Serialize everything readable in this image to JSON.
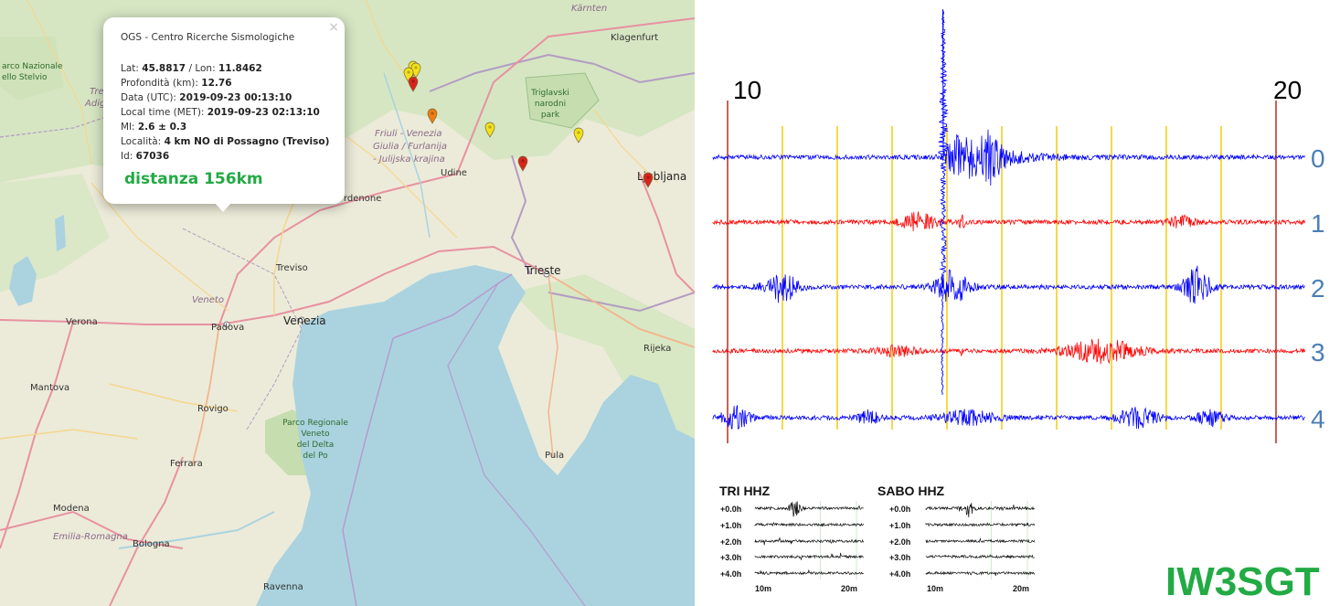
{
  "map": {
    "labels": {
      "karnten": "Kärnten",
      "klagenfurt": "Klagenfurt",
      "parco_stelvio_1": "arco Nazionale",
      "parco_stelvio_2": "ello Stelvio",
      "trentino_1": "Tre",
      "trentino_2": "Adig",
      "triglav_1": "Triglavski",
      "triglav_2": "narodni",
      "triglav_3": "park",
      "friuli_1": "Friuli - Venezia",
      "friuli_2": "Giulia / Furlanija",
      "friuli_3": "- Julijska krajina",
      "udine": "Udine",
      "ljubljana": "Ljubljana",
      "pordenone": "rdenone",
      "treviso": "Treviso",
      "trieste": "Trieste",
      "veneto": "Veneto",
      "verona": "Verona",
      "padova": "Padova",
      "venezia": "Venezia",
      "rijeka": "Rijeka",
      "mantova": "Mantova",
      "rovigo": "Rovigo",
      "parco_po_1": "Parco Regionale",
      "parco_po_2": "Veneto",
      "parco_po_3": "del Delta",
      "parco_po_4": "del Po",
      "pula": "Pula",
      "ferrara": "Ferrara",
      "modena": "Modena",
      "emilia": "Emilia-Romagna",
      "bologna": "Bologna",
      "ravenna": "Ravenna"
    },
    "markers": [
      {
        "color": "#f3e11b",
        "label": "yellow"
      },
      {
        "color": "#f3e11b",
        "label": "yellow"
      },
      {
        "color": "#f3e11b",
        "label": "yellow"
      },
      {
        "color": "#d9241c",
        "label": "red"
      },
      {
        "color": "#ef7d12",
        "label": "orange"
      },
      {
        "color": "#f3e11b",
        "label": "yellow"
      },
      {
        "color": "#f3e11b",
        "label": "yellow"
      },
      {
        "color": "#d9241c",
        "label": "red"
      },
      {
        "color": "#d9241c",
        "label": "red"
      }
    ]
  },
  "popup": {
    "close": "×",
    "source": "OGS - Centro Ricerche Sismologiche",
    "lat_label": "Lat: ",
    "lat": "45.8817",
    "lon_label": " / Lon: ",
    "lon": "11.8462",
    "depth_label": "Profondità (km): ",
    "depth": "12.76",
    "date_label": "Data (UTC): ",
    "date": "2019-09-23 00:13:10",
    "local_label": "Local time (MET): ",
    "local": "2019-09-23 02:13:10",
    "ml_label": "Ml: ",
    "ml": "2.6 ± 0.3",
    "loc_label": "Località: ",
    "loc": "4 km NO di Possagno (Treviso)",
    "id_label": "Id: ",
    "id": "67036",
    "distance": "distanza 156km"
  },
  "seismogram": {
    "minute_start": "10",
    "minute_end": "20",
    "traces": [
      {
        "label": "0",
        "color": "#0000ff"
      },
      {
        "label": "1",
        "color": "#ff0000"
      },
      {
        "label": "2",
        "color": "#0000ff"
      },
      {
        "label": "3",
        "color": "#ff0000"
      },
      {
        "label": "4",
        "color": "#0000ff"
      }
    ],
    "label_color": "#4a7fb5",
    "grid_color": "#f2cc0f",
    "marker_color": "#b03020"
  },
  "mini_panels": [
    {
      "title": "TRI HHZ",
      "rows": [
        "+0.0h",
        "+1.0h",
        "+2.0h",
        "+3.0h",
        "+4.0h"
      ],
      "x_start": "10m",
      "x_end": "20m"
    },
    {
      "title": "SABO HHZ",
      "rows": [
        "+0.0h",
        "+1.0h",
        "+2.0h",
        "+3.0h",
        "+4.0h"
      ],
      "x_start": "10m",
      "x_end": "20m"
    }
  ],
  "brand": "IW3SGT"
}
